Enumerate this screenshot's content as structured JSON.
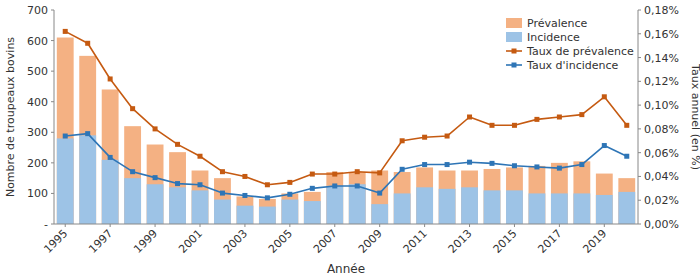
{
  "chart_data": {
    "type": "bar",
    "xlabel": "Année",
    "ylabel": "Nombre de troupeaux bovins",
    "y2label": "Taux annuel (en %)",
    "categories": [
      1995,
      null,
      1997,
      null,
      1999,
      null,
      2001,
      null,
      2003,
      null,
      2005,
      null,
      2007,
      null,
      2009,
      null,
      2011,
      null,
      2013,
      null,
      2015,
      null,
      2017,
      null,
      2019,
      null
    ],
    "series": [
      {
        "name": "Prévalence",
        "type": "bar",
        "color": "#F4B183",
        "values": [
          610,
          550,
          440,
          320,
          260,
          235,
          175,
          150,
          90,
          82,
          100,
          105,
          170,
          170,
          175,
          170,
          185,
          175,
          175,
          180,
          185,
          190,
          200,
          205,
          165,
          150
        ]
      },
      {
        "name": "Incidence",
        "type": "bar",
        "color": "#9DC3E6",
        "values": [
          280,
          290,
          210,
          150,
          130,
          120,
          110,
          80,
          60,
          57,
          80,
          75,
          125,
          130,
          65,
          100,
          120,
          115,
          120,
          110,
          110,
          100,
          100,
          100,
          95,
          105
        ]
      },
      {
        "name": "Taux de prévalence",
        "type": "line",
        "axis": "y2",
        "color": "#C55A11",
        "marker": "square",
        "values": [
          0.162,
          0.152,
          0.122,
          0.097,
          0.08,
          0.067,
          0.057,
          0.044,
          0.04,
          0.033,
          0.035,
          0.042,
          0.042,
          0.044,
          0.043,
          0.07,
          0.073,
          0.074,
          0.09,
          0.083,
          0.083,
          0.088,
          0.09,
          0.092,
          0.107,
          0.083
        ]
      },
      {
        "name": "Taux d'incidence",
        "type": "line",
        "axis": "y2",
        "color": "#2E75B6",
        "marker": "square",
        "values": [
          0.074,
          0.076,
          0.056,
          0.044,
          0.039,
          0.034,
          0.033,
          0.026,
          0.024,
          0.022,
          0.025,
          0.03,
          0.032,
          0.032,
          0.026,
          0.046,
          0.05,
          0.05,
          0.052,
          0.051,
          0.049,
          0.048,
          0.047,
          0.05,
          0.066,
          0.057
        ]
      }
    ],
    "stacked": false,
    "ylim": [
      0,
      700
    ],
    "yticks": [
      {
        "value": 0,
        "label": "-"
      },
      100,
      200,
      300,
      400,
      500,
      600,
      700
    ],
    "y2lim": [
      0,
      0.18
    ],
    "y2ticks": [
      {
        "value": 0.0,
        "label": "0,00%"
      },
      {
        "value": 0.02,
        "label": "0,02%"
      },
      {
        "value": 0.04,
        "label": "0,04%"
      },
      {
        "value": 0.06,
        "label": "0,06%"
      },
      {
        "value": 0.08,
        "label": "0,08%"
      },
      {
        "value": 0.1,
        "label": "0,10%"
      },
      {
        "value": 0.12,
        "label": "0,12%"
      },
      {
        "value": 0.14,
        "label": "0,14%"
      },
      {
        "value": 0.16,
        "label": "0,16%"
      },
      {
        "value": 0.18,
        "label": "0,18%"
      }
    ],
    "legend": "upper right",
    "grid": false
  }
}
